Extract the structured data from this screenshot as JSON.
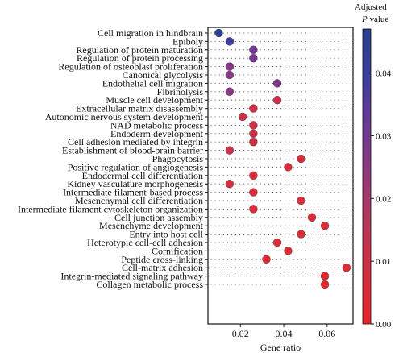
{
  "chart_data": {
    "type": "scatter",
    "title": "",
    "xlabel": "Gene ratio",
    "ylabel": "",
    "xlim": [
      0.005,
      0.072
    ],
    "xticks": [
      0.02,
      0.04,
      0.06
    ],
    "xtick_labels": [
      "0.02",
      "0.04",
      "0.06"
    ],
    "grid": true,
    "legend_placement": "right",
    "color_scale": {
      "title_line1": "Adjusted",
      "title_line2_italic": "P",
      "title_line2_rest": " value",
      "min": 0.0,
      "max": 0.047,
      "ticks": [
        0.0,
        0.01,
        0.02,
        0.03,
        0.04
      ],
      "tick_labels": [
        "0.00",
        "0.01",
        "0.02",
        "0.03",
        "0.04"
      ],
      "colors": [
        "#e8252b",
        "#d42f3e",
        "#b93859",
        "#95397a",
        "#6d3a93",
        "#3d3d9e",
        "#27408b"
      ]
    },
    "points": [
      {
        "term": "Cell migration in hindbrain",
        "ratio": 0.01,
        "padj": 0.046
      },
      {
        "term": "Epiboly",
        "ratio": 0.015,
        "padj": 0.041
      },
      {
        "term": "Regulation of protein maturation",
        "ratio": 0.026,
        "padj": 0.03
      },
      {
        "term": "Regulation of protein processing",
        "ratio": 0.026,
        "padj": 0.03
      },
      {
        "term": "Regulation of osteoblast proliferation",
        "ratio": 0.015,
        "padj": 0.026
      },
      {
        "term": "Canonical glycolysis",
        "ratio": 0.015,
        "padj": 0.026
      },
      {
        "term": "Endothelial cell migration",
        "ratio": 0.037,
        "padj": 0.029
      },
      {
        "term": "Fibrinolysis",
        "ratio": 0.015,
        "padj": 0.026
      },
      {
        "term": "Muscle cell development",
        "ratio": 0.037,
        "padj": 0.011
      },
      {
        "term": "Extracellular matrix disassembly",
        "ratio": 0.026,
        "padj": 0.011
      },
      {
        "term": "Autonomic nervous system development",
        "ratio": 0.021,
        "padj": 0.011
      },
      {
        "term": "NAD metabolic process",
        "ratio": 0.026,
        "padj": 0.011
      },
      {
        "term": "Endoderm development",
        "ratio": 0.026,
        "padj": 0.011
      },
      {
        "term": "Cell adhesion mediated by integrin",
        "ratio": 0.026,
        "padj": 0.011
      },
      {
        "term": "Establishment of blood-brain barrier",
        "ratio": 0.015,
        "padj": 0.011
      },
      {
        "term": "Phagocytosis",
        "ratio": 0.048,
        "padj": 0.007
      },
      {
        "term": "Positive regulation of angiogenesis",
        "ratio": 0.042,
        "padj": 0.006
      },
      {
        "term": "Endodermal cell differentiation",
        "ratio": 0.026,
        "padj": 0.007
      },
      {
        "term": "Kidney vasculature morphogenesis",
        "ratio": 0.015,
        "padj": 0.007
      },
      {
        "term": "Intermediate filament-based process",
        "ratio": 0.026,
        "padj": 0.007
      },
      {
        "term": "Mesenchymal cell differentiation",
        "ratio": 0.048,
        "padj": 0.006
      },
      {
        "term": "Intermediate filament cytoskeleton organization",
        "ratio": 0.026,
        "padj": 0.006
      },
      {
        "term": "Cell junction assembly",
        "ratio": 0.053,
        "padj": 0.006
      },
      {
        "term": "Mesenchyme development",
        "ratio": 0.059,
        "padj": 0.005
      },
      {
        "term": "Entry into host cell",
        "ratio": 0.048,
        "padj": 0.005
      },
      {
        "term": "Heterotypic cell-cell adhesion",
        "ratio": 0.037,
        "padj": 0.006
      },
      {
        "term": "Cornification",
        "ratio": 0.042,
        "padj": 0.005
      },
      {
        "term": "Peptide cross-linking",
        "ratio": 0.032,
        "padj": 0.004
      },
      {
        "term": "Cell-matrix adhesion",
        "ratio": 0.069,
        "padj": 0.002
      },
      {
        "term": "Integrin-mediated signaling pathway",
        "ratio": 0.059,
        "padj": 0.002
      },
      {
        "term": "Collagen metabolic process",
        "ratio": 0.059,
        "padj": 0.002
      }
    ]
  }
}
